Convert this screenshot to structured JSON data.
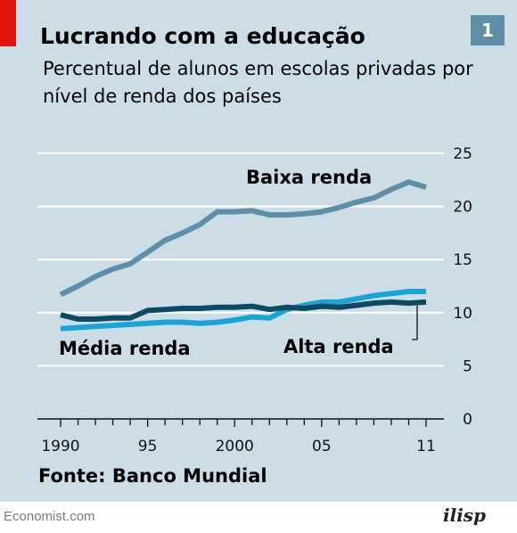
{
  "title": "Lucrando com a educação",
  "subtitle": "Percentual de alunos em escolas privadas por nível de renda dos países",
  "badge": "1",
  "source": "Fonte: Banco Mundial",
  "footer_left": "Economist.com",
  "footer_right": "ilisp",
  "colors": {
    "background": "#cddde6",
    "brand_red": "#e3120b",
    "badge": "#5e8fa9",
    "baixa": "#5e8fa9",
    "media": "#1aa5d8",
    "alta": "#0c4a63"
  },
  "chart_data": {
    "type": "line",
    "x": [
      1990,
      1991,
      1992,
      1993,
      1994,
      1995,
      1996,
      1997,
      1998,
      1999,
      2000,
      2001,
      2002,
      2003,
      2004,
      2005,
      2006,
      2007,
      2008,
      2009,
      2010,
      2011
    ],
    "x_tick_values": [
      1990,
      1995,
      2000,
      2005,
      2011
    ],
    "x_tick_labels": [
      "1990",
      "95",
      "2000",
      "05",
      "11"
    ],
    "ylim": [
      0,
      25
    ],
    "y_ticks": [
      0,
      5,
      10,
      15,
      20,
      25
    ],
    "grid": true,
    "y_axis_side": "right",
    "series": [
      {
        "name": "Baixa renda",
        "color": "#5e8fa9",
        "values": [
          11.7,
          12.5,
          13.4,
          14.1,
          14.6,
          15.7,
          16.8,
          17.5,
          18.3,
          19.5,
          19.5,
          19.6,
          19.2,
          19.2,
          19.3,
          19.5,
          19.9,
          20.4,
          20.8,
          21.6,
          22.3,
          21.8
        ]
      },
      {
        "name": "Média renda",
        "color": "#1aa5d8",
        "values": [
          8.5,
          8.6,
          8.7,
          8.8,
          8.9,
          9.0,
          9.1,
          9.1,
          9.0,
          9.1,
          9.3,
          9.6,
          9.5,
          10.3,
          10.7,
          11.0,
          11.0,
          11.3,
          11.6,
          11.8,
          12.0,
          12.0
        ]
      },
      {
        "name": "Alta renda",
        "color": "#0c4a63",
        "values": [
          9.8,
          9.4,
          9.4,
          9.5,
          9.5,
          10.2,
          10.3,
          10.4,
          10.4,
          10.5,
          10.5,
          10.6,
          10.3,
          10.5,
          10.4,
          10.6,
          10.5,
          10.7,
          10.9,
          11.0,
          10.9,
          11.0
        ]
      }
    ]
  }
}
